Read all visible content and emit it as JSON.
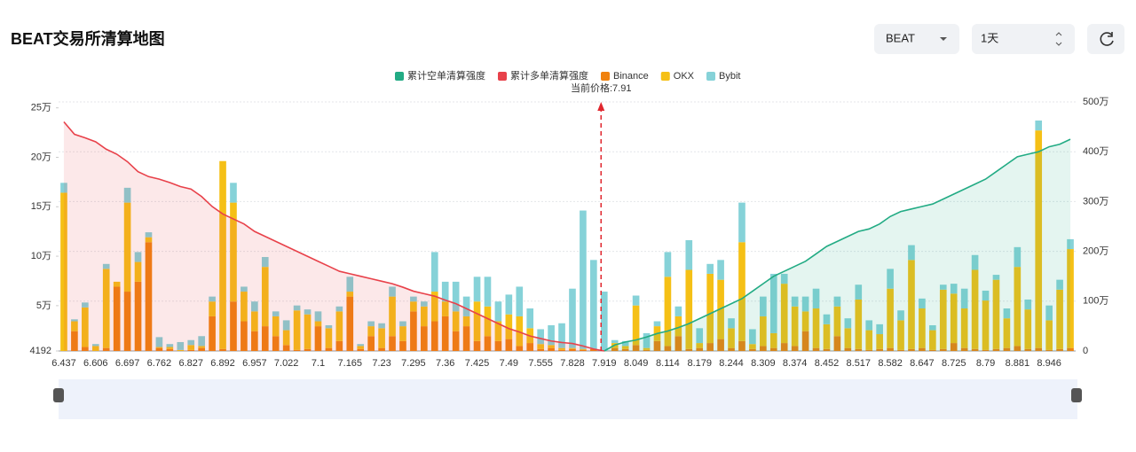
{
  "header": {
    "title": "BEAT交易所清算地图"
  },
  "controls": {
    "symbol": "BEAT",
    "period": "1天"
  },
  "chart_data": {
    "type": "bar",
    "stacked": true,
    "annotation": "当前价格:7.91",
    "current_price": 7.91,
    "categories": [
      "6.437",
      null,
      null,
      "6.606",
      null,
      null,
      "6.697",
      null,
      null,
      "6.762",
      null,
      null,
      "6.827",
      null,
      null,
      "6.892",
      null,
      null,
      "6.957",
      null,
      null,
      "7.022",
      null,
      null,
      "7.1",
      null,
      null,
      "7.165",
      null,
      null,
      "7.23",
      null,
      null,
      "7.295",
      null,
      null,
      "7.36",
      null,
      null,
      "7.425",
      null,
      null,
      "7.49",
      null,
      null,
      "7.555",
      null,
      null,
      "7.828",
      null,
      null,
      "7.919",
      null,
      null,
      "8.049",
      null,
      null,
      "8.114",
      null,
      null,
      "8.179",
      null,
      null,
      "8.244",
      null,
      null,
      "8.309",
      null,
      null,
      "8.374",
      null,
      null,
      "8.452",
      null,
      null,
      "8.517",
      null,
      null,
      "8.582",
      null,
      null,
      "8.647",
      null,
      null,
      "8.725",
      null,
      null,
      "8.79",
      null,
      null,
      "8.881",
      null,
      null,
      "8.946",
      null,
      null
    ],
    "ylim": [
      4192,
      256000
    ],
    "yticks": [
      4192,
      {
        "value": 50000,
        "label": "5万"
      },
      {
        "value": 100000,
        "label": "10万"
      },
      {
        "value": 150000,
        "label": "15万"
      },
      {
        "value": 200000,
        "label": "20万"
      },
      {
        "value": 250000,
        "label": "25万"
      }
    ],
    "y2lim": [
      0,
      5000000
    ],
    "y2ticks": [
      0,
      {
        "value": 1000000,
        "label": "100万"
      },
      {
        "value": 2000000,
        "label": "200万"
      },
      {
        "value": 3000000,
        "label": "300万"
      },
      {
        "value": 4000000,
        "label": "400万"
      },
      {
        "value": 5000000,
        "label": "500万"
      }
    ],
    "grid": true,
    "series": [
      {
        "name": "累计空单清算强度",
        "type": "line",
        "axis": "y2",
        "color": "#22ab84",
        "values": [
          null,
          null,
          null,
          null,
          null,
          null,
          null,
          null,
          null,
          null,
          null,
          null,
          null,
          null,
          null,
          null,
          null,
          null,
          null,
          null,
          null,
          null,
          null,
          null,
          null,
          null,
          null,
          null,
          null,
          null,
          null,
          null,
          null,
          null,
          null,
          null,
          null,
          null,
          null,
          null,
          null,
          null,
          null,
          null,
          null,
          null,
          null,
          null,
          null,
          null,
          null,
          0,
          120000,
          180000,
          220000,
          280000,
          350000,
          400000,
          470000,
          550000,
          650000,
          750000,
          850000,
          950000,
          1050000,
          1200000,
          1350000,
          1500000,
          1600000,
          1700000,
          1800000,
          1950000,
          2100000,
          2200000,
          2300000,
          2400000,
          2450000,
          2550000,
          2700000,
          2800000,
          2850000,
          2900000,
          2950000,
          3050000,
          3150000,
          3250000,
          3350000,
          3450000,
          3600000,
          3750000,
          3900000,
          3950000,
          4000000,
          4100000,
          4150000,
          4250000
        ]
      },
      {
        "name": "累计多单清算强度",
        "type": "line",
        "axis": "y2",
        "color": "#e8414a",
        "values": [
          4600000,
          4350000,
          4280000,
          4200000,
          4050000,
          3950000,
          3800000,
          3600000,
          3500000,
          3450000,
          3380000,
          3300000,
          3250000,
          3100000,
          2900000,
          2750000,
          2650000,
          2550000,
          2400000,
          2300000,
          2200000,
          2100000,
          2000000,
          1900000,
          1800000,
          1700000,
          1600000,
          1550000,
          1500000,
          1450000,
          1400000,
          1350000,
          1280000,
          1200000,
          1150000,
          1100000,
          1020000,
          950000,
          850000,
          750000,
          650000,
          550000,
          450000,
          380000,
          300000,
          250000,
          200000,
          170000,
          150000,
          100000,
          40000,
          0,
          null,
          null,
          null,
          null,
          null,
          null,
          null,
          null,
          null,
          null,
          null,
          null,
          null,
          null,
          null,
          null,
          null,
          null,
          null,
          null,
          null,
          null,
          null,
          null,
          null,
          null,
          null,
          null,
          null,
          null,
          null,
          null,
          null,
          null,
          null,
          null,
          null,
          null,
          null,
          null,
          null,
          null,
          null,
          null
        ]
      },
      {
        "name": "Binance",
        "type": "bar",
        "color": "#f0820f",
        "values": [
          0,
          20000,
          4000,
          0,
          3000,
          65000,
          60000,
          70000,
          110000,
          3000,
          2000,
          0,
          1000,
          3000,
          35000,
          2000,
          50000,
          30000,
          20000,
          25000,
          15000,
          6000,
          1000,
          2000,
          25000,
          3000,
          10000,
          55000,
          2000,
          15000,
          3000,
          15000,
          10000,
          40000,
          25000,
          30000,
          35000,
          20000,
          25000,
          10000,
          15000,
          10000,
          12000,
          5000,
          8000,
          2000,
          3000,
          1000,
          2000,
          1000,
          2000,
          0,
          3000,
          2000,
          6000,
          1000,
          10000,
          5000,
          15000,
          2000,
          3000,
          8000,
          12000,
          3000,
          10000,
          2000,
          5000,
          3000,
          8000,
          5000,
          20000,
          3000,
          2000,
          15000,
          3000,
          2000,
          1000,
          2000,
          3000,
          1000,
          2000,
          3000,
          1000,
          2000,
          8000,
          3000,
          2000,
          1000,
          2000,
          3000,
          5000,
          2000,
          3000,
          1000,
          2000,
          3000
        ]
      },
      {
        "name": "OKX",
        "type": "bar",
        "color": "#f5c016",
        "values": [
          160000,
          10000,
          40000,
          5000,
          80000,
          5000,
          90000,
          20000,
          5000,
          1000,
          2000,
          1000,
          5000,
          2000,
          15000,
          190000,
          100000,
          30000,
          20000,
          60000,
          20000,
          15000,
          40000,
          35000,
          5000,
          20000,
          30000,
          5000,
          3000,
          10000,
          20000,
          40000,
          15000,
          10000,
          20000,
          30000,
          15000,
          20000,
          10000,
          40000,
          30000,
          20000,
          25000,
          30000,
          15000,
          5000,
          3000,
          2000,
          1000,
          1000,
          0,
          0,
          5000,
          3000,
          40000,
          2000,
          15000,
          70000,
          20000,
          80000,
          5000,
          70000,
          60000,
          20000,
          100000,
          5000,
          30000,
          15000,
          60000,
          40000,
          20000,
          40000,
          25000,
          30000,
          20000,
          50000,
          20000,
          15000,
          60000,
          30000,
          90000,
          40000,
          20000,
          60000,
          50000,
          40000,
          80000,
          50000,
          70000,
          30000,
          80000,
          40000,
          220000,
          30000,
          60000,
          100000
        ]
      },
      {
        "name": "Bybit",
        "type": "bar",
        "color": "#86d2d8",
        "values": [
          10000,
          2000,
          5000,
          2000,
          5000,
          0,
          15000,
          10000,
          5000,
          10000,
          3000,
          8000,
          5000,
          10000,
          5000,
          0,
          20000,
          5000,
          10000,
          10000,
          5000,
          10000,
          5000,
          5000,
          10000,
          3000,
          5000,
          15000,
          2000,
          5000,
          5000,
          10000,
          5000,
          5000,
          5000,
          40000,
          20000,
          30000,
          20000,
          25000,
          30000,
          20000,
          20000,
          30000,
          20000,
          15000,
          20000,
          25000,
          60000,
          140000,
          90000,
          60000,
          3000,
          5000,
          10000,
          15000,
          5000,
          25000,
          10000,
          30000,
          15000,
          10000,
          20000,
          10000,
          40000,
          15000,
          20000,
          60000,
          10000,
          10000,
          15000,
          20000,
          10000,
          10000,
          10000,
          15000,
          10000,
          10000,
          20000,
          10000,
          15000,
          10000,
          5000,
          5000,
          10000,
          20000,
          15000,
          10000,
          5000,
          10000,
          20000,
          10000,
          10000,
          15000,
          10000,
          10000
        ]
      }
    ]
  }
}
